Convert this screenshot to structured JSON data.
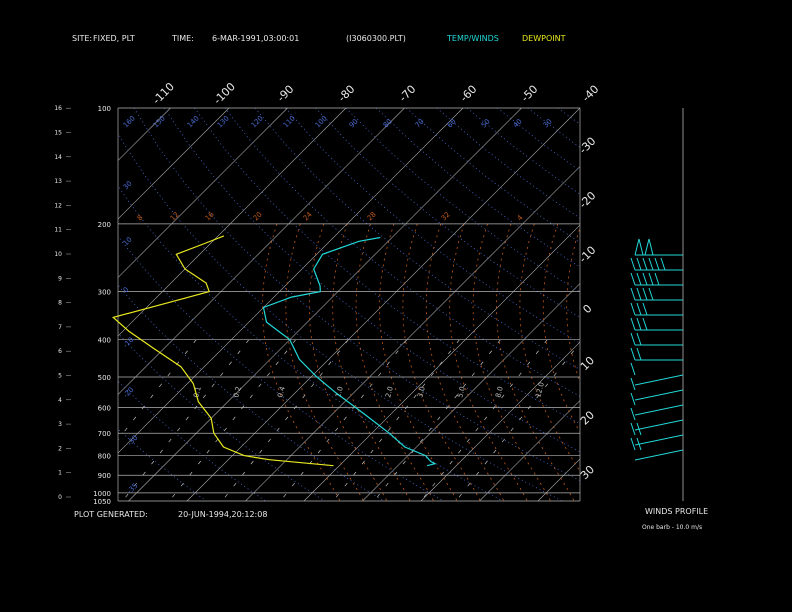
{
  "header": {
    "site_label": "SITE:",
    "site_value": "FIXED, PLT",
    "time_label": "TIME:",
    "time_value": "6-MAR-1991,03:00:01",
    "file": "(I3060300.PLT)",
    "temp_legend": "TEMP/WINDS",
    "dew_legend": "DEWPOINT"
  },
  "footer": {
    "generated_label": "PLOT GENERATED:",
    "generated_value": "20-JUN-1994,20:12:08"
  },
  "winds": {
    "title": "WINDS PROFILE",
    "note": "One barb - 10.0 m/s"
  },
  "colors": {
    "background": "#000000",
    "isobar": "#b4b4b4",
    "isotherm": "#b4b4b4",
    "dry_adiabat": "#4a6cd4",
    "moist_adiabat": "#c05a1c",
    "mixing_ratio": "#c0c0c0",
    "temperature": "#22d8d8",
    "dewpoint": "#e8e820",
    "text": "#e8e8e8"
  },
  "chart_data": {
    "type": "line",
    "title": "",
    "pressure_levels": [
      "100",
      "200",
      "300",
      "400",
      "500",
      "600",
      "700",
      "800",
      "900",
      "1000",
      "1050"
    ],
    "height_ticks": [
      "0",
      "1",
      "2",
      "3",
      "4",
      "5",
      "6",
      "7",
      "8",
      "9",
      "10",
      "11",
      "12",
      "13",
      "14",
      "15",
      "16"
    ],
    "temp_top_ticks": [
      "-110",
      "-100",
      "-90",
      "-80",
      "-70",
      "-60",
      "-50",
      "-40"
    ],
    "temp_right_ticks": [
      "-30",
      "-20",
      "-10",
      "0",
      "10",
      "20",
      "30"
    ],
    "dry_adiabat_labels": [
      "160",
      "150",
      "140",
      "130",
      "120",
      "110",
      "100",
      "90",
      "80",
      "70",
      "60",
      "50",
      "40",
      "30",
      "20",
      "10"
    ],
    "moist_adiabat_labels": [
      "8",
      "12",
      "16",
      "20",
      "24",
      "28",
      "32",
      "4"
    ],
    "mixing_ratio_labels": [
      "0.1",
      "0.2",
      "0.4",
      "1.0",
      "2.0",
      "3.0",
      "5.0",
      "8.0",
      "12.0"
    ],
    "series": [
      {
        "name": "TEMP/WINDS",
        "points": [
          {
            "p": 217,
            "t": -52
          },
          {
            "p": 222,
            "t": -55
          },
          {
            "p": 240,
            "t": -59
          },
          {
            "p": 262,
            "t": -58
          },
          {
            "p": 290,
            "t": -54
          },
          {
            "p": 300,
            "t": -53
          },
          {
            "p": 310,
            "t": -57
          },
          {
            "p": 330,
            "t": -60
          },
          {
            "p": 360,
            "t": -57
          },
          {
            "p": 400,
            "t": -50
          },
          {
            "p": 450,
            "t": -45
          },
          {
            "p": 500,
            "t": -39
          },
          {
            "p": 550,
            "t": -33
          },
          {
            "p": 620,
            "t": -25
          },
          {
            "p": 700,
            "t": -17
          },
          {
            "p": 760,
            "t": -12
          },
          {
            "p": 800,
            "t": -7
          },
          {
            "p": 830,
            "t": -5
          },
          {
            "p": 840,
            "t": -4
          },
          {
            "p": 850,
            "t": -5
          }
        ]
      },
      {
        "name": "DEWPOINT",
        "points": [
          {
            "p": 215,
            "t": -79
          },
          {
            "p": 225,
            "t": -81
          },
          {
            "p": 240,
            "t": -84
          },
          {
            "p": 262,
            "t": -80
          },
          {
            "p": 285,
            "t": -74
          },
          {
            "p": 300,
            "t": -72
          },
          {
            "p": 320,
            "t": -77
          },
          {
            "p": 350,
            "t": -84
          },
          {
            "p": 380,
            "t": -79
          },
          {
            "p": 420,
            "t": -72
          },
          {
            "p": 470,
            "t": -64
          },
          {
            "p": 520,
            "t": -59
          },
          {
            "p": 580,
            "t": -55
          },
          {
            "p": 640,
            "t": -50
          },
          {
            "p": 700,
            "t": -47
          },
          {
            "p": 760,
            "t": -43
          },
          {
            "p": 800,
            "t": -38
          },
          {
            "p": 820,
            "t": -33
          },
          {
            "p": 840,
            "t": -25
          },
          {
            "p": 850,
            "t": -21
          }
        ]
      }
    ],
    "wind_barbs": [
      {
        "level": 1,
        "flags": 2,
        "barbs": 0
      },
      {
        "level": 2,
        "flags": 0,
        "barbs": 6
      },
      {
        "level": 3,
        "flags": 0,
        "barbs": 5
      },
      {
        "level": 4,
        "flags": 0,
        "barbs": 4
      },
      {
        "level": 5,
        "flags": 0,
        "barbs": 3
      },
      {
        "level": 6,
        "flags": 0,
        "barbs": 3
      },
      {
        "level": 7,
        "flags": 0,
        "barbs": 2
      },
      {
        "level": 8,
        "flags": 0,
        "barbs": 2
      },
      {
        "level": 9,
        "flags": 0,
        "barbs": 1
      },
      {
        "level": 10,
        "flags": 0,
        "barbs": 1
      },
      {
        "level": 11,
        "flags": 0,
        "barbs": 1
      },
      {
        "level": 12,
        "flags": 0,
        "barbs": 1
      },
      {
        "level": 13,
        "flags": 0,
        "barbs": 2
      },
      {
        "level": 14,
        "flags": 0,
        "barbs": 2
      }
    ]
  }
}
